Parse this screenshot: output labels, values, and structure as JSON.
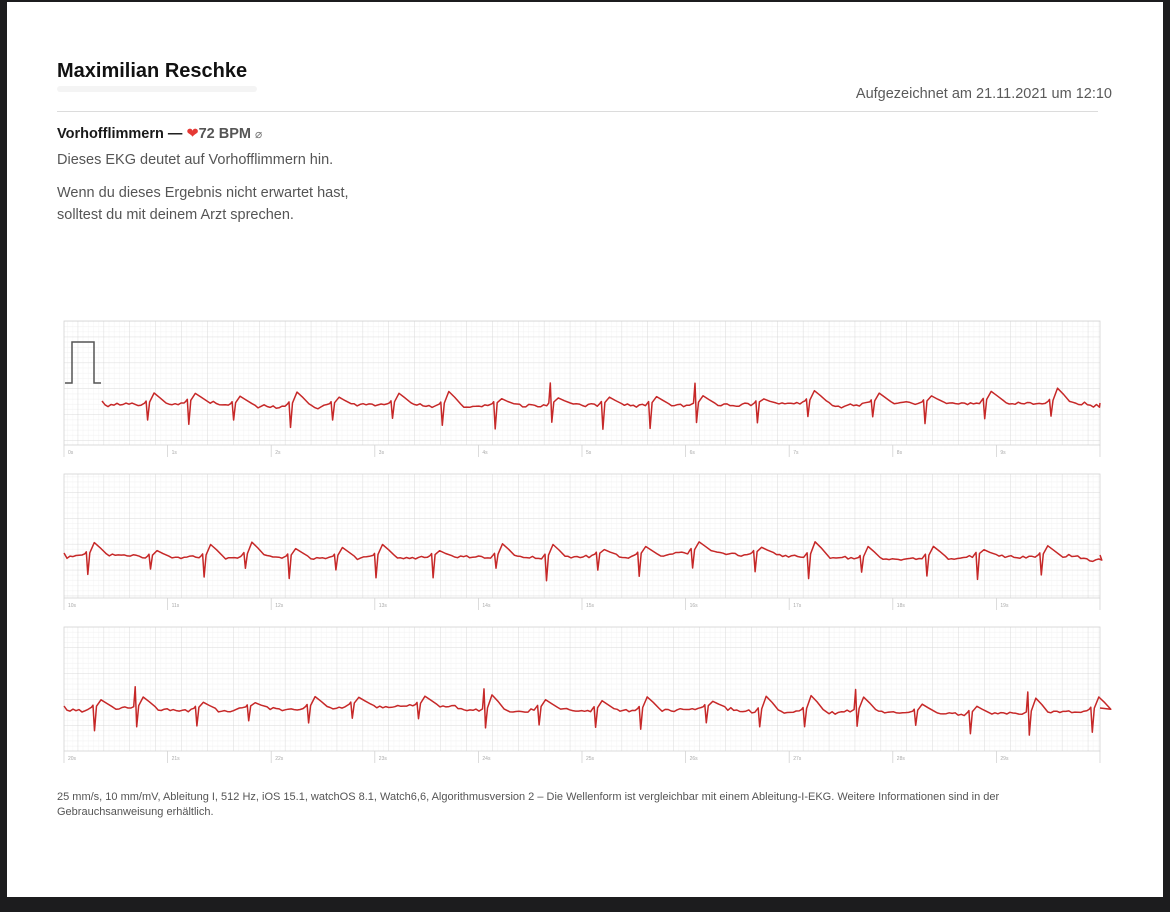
{
  "patient": {
    "name": "Maximilian Reschke"
  },
  "recording": {
    "timestamp": "Aufgezeichnet am 21.11.2021 um 12:10"
  },
  "result": {
    "classification": "Vorhofflimmern",
    "separator": "—",
    "heart_icon": "heart-icon",
    "heart_rate": "72 BPM",
    "average_symbol": "⌀",
    "description": "Dieses EKG deutet auf Vorhofflimmern hin.",
    "advice": "Wenn du dieses Ergebnis nicht erwartet hast, solltest du mit deinem Arzt sprechen."
  },
  "strips": [
    {
      "second_labels": [
        "0s",
        "1s",
        "2s",
        "3s",
        "4s",
        "5s",
        "6s",
        "7s",
        "8s",
        "9s"
      ]
    },
    {
      "second_labels": [
        "10s",
        "11s",
        "12s",
        "13s",
        "14s",
        "15s",
        "16s",
        "17s",
        "18s",
        "19s"
      ]
    },
    {
      "second_labels": [
        "20s",
        "21s",
        "22s",
        "23s",
        "24s",
        "25s",
        "26s",
        "27s",
        "28s",
        "29s"
      ]
    }
  ],
  "colors": {
    "trace": "#c62828",
    "grid_minor": "#ececec",
    "grid_major": "#d3d3d3",
    "calibration": "#555555"
  },
  "footer": {
    "text": "25 mm/s, 10 mm/mV, Ableitung I, 512 Hz, iOS 15.1, watchOS 8.1, Watch6,6, Algorithmusversion 2 – Die Wellenform ist vergleichbar mit einem Ableitung-I-EKG. Weitere Informationen sind in der Gebrauchsanweisung erhältlich."
  }
}
